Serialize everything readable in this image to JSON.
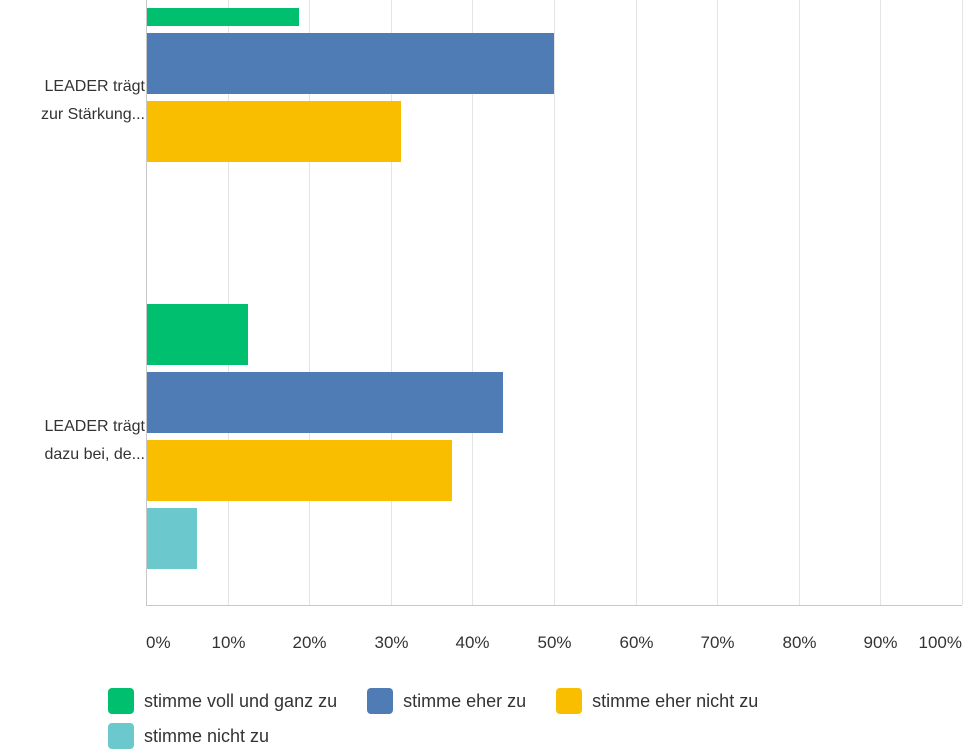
{
  "chart_data": {
    "type": "bar",
    "orientation": "horizontal",
    "categories": [
      {
        "lines": [
          "LEADER trägt",
          "zur Stärkung..."
        ]
      },
      {
        "lines": [
          "LEADER trägt",
          "dazu bei, de..."
        ]
      }
    ],
    "series": [
      {
        "name": "stimme voll und ganz zu",
        "color": "#00bf6f",
        "values": [
          18.75,
          12.5
        ]
      },
      {
        "name": "stimme eher zu",
        "color": "#507cb6",
        "values": [
          50.0,
          43.75
        ]
      },
      {
        "name": "stimme eher nicht zu",
        "color": "#f9be00",
        "values": [
          31.25,
          37.5
        ]
      },
      {
        "name": "stimme nicht zu",
        "color": "#6bc8cd",
        "values": [
          0,
          6.25
        ]
      }
    ],
    "x_ticks": [
      "0%",
      "10%",
      "20%",
      "30%",
      "40%",
      "50%",
      "60%",
      "70%",
      "80%",
      "90%",
      "100%"
    ],
    "xlim": [
      0,
      100
    ],
    "grid": true,
    "legend_position": "bottom"
  }
}
